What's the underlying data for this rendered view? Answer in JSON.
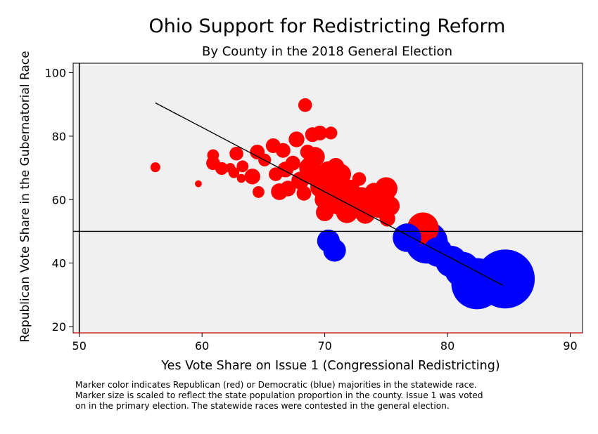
{
  "chart_data": {
    "type": "scatter",
    "title": "Ohio Support for Redistricting Reform",
    "subtitle": "By County in the 2018 General Election",
    "xlabel": "Yes Vote Share on Issue 1 (Congressional Redistricting)",
    "ylabel": "Republican Vote Share in the Gubernatorial Race",
    "xlim": [
      49.5,
      91
    ],
    "ylim": [
      18,
      103
    ],
    "xticks": [
      50,
      60,
      70,
      80,
      90
    ],
    "yticks": [
      20,
      40,
      60,
      80,
      100
    ],
    "grid": false,
    "reference_lines": {
      "x": 50,
      "y": 50
    },
    "fit_line": {
      "x": [
        56.2,
        84.5
      ],
      "y": [
        90.5,
        33
      ]
    },
    "colors": {
      "republican": "#ff0000",
      "democratic": "#0000ff",
      "line": "#000000",
      "plot_bg": "#f0f0f0"
    },
    "series": [
      {
        "name": "Republican",
        "color": "#ff0000",
        "points": [
          {
            "x": 56.2,
            "y": 70.2,
            "size": 1.0
          },
          {
            "x": 59.7,
            "y": 65.0,
            "size": 0.7
          },
          {
            "x": 60.9,
            "y": 74.0,
            "size": 1.2
          },
          {
            "x": 60.9,
            "y": 71.5,
            "size": 1.4
          },
          {
            "x": 61.6,
            "y": 69.8,
            "size": 1.3
          },
          {
            "x": 62.3,
            "y": 70.0,
            "size": 1.0
          },
          {
            "x": 62.8,
            "y": 74.5,
            "size": 1.4
          },
          {
            "x": 62.6,
            "y": 68.5,
            "size": 1.1
          },
          {
            "x": 63.2,
            "y": 66.7,
            "size": 0.9
          },
          {
            "x": 63.3,
            "y": 70.5,
            "size": 1.2
          },
          {
            "x": 64.1,
            "y": 67.3,
            "size": 1.6
          },
          {
            "x": 64.5,
            "y": 75.0,
            "size": 1.5
          },
          {
            "x": 64.6,
            "y": 62.4,
            "size": 1.2
          },
          {
            "x": 65.1,
            "y": 72.5,
            "size": 1.3
          },
          {
            "x": 65.8,
            "y": 77.0,
            "size": 1.5
          },
          {
            "x": 66.0,
            "y": 68.0,
            "size": 1.4
          },
          {
            "x": 66.3,
            "y": 62.5,
            "size": 1.7
          },
          {
            "x": 66.6,
            "y": 75.5,
            "size": 1.5
          },
          {
            "x": 66.8,
            "y": 69.5,
            "size": 1.6
          },
          {
            "x": 67.0,
            "y": 63.5,
            "size": 1.6
          },
          {
            "x": 67.4,
            "y": 71.5,
            "size": 1.5
          },
          {
            "x": 67.7,
            "y": 79.0,
            "size": 1.6
          },
          {
            "x": 68.0,
            "y": 66.0,
            "size": 1.8
          },
          {
            "x": 68.3,
            "y": 62.0,
            "size": 1.5
          },
          {
            "x": 68.4,
            "y": 89.8,
            "size": 1.4
          },
          {
            "x": 68.6,
            "y": 75.0,
            "size": 1.5
          },
          {
            "x": 68.8,
            "y": 70.0,
            "size": 2.2
          },
          {
            "x": 69.0,
            "y": 80.5,
            "size": 1.5
          },
          {
            "x": 69.2,
            "y": 73.5,
            "size": 2.0
          },
          {
            "x": 69.4,
            "y": 67.0,
            "size": 2.0
          },
          {
            "x": 69.6,
            "y": 81.0,
            "size": 1.5
          },
          {
            "x": 69.7,
            "y": 64.0,
            "size": 2.2
          },
          {
            "x": 69.9,
            "y": 60.0,
            "size": 1.8
          },
          {
            "x": 70.0,
            "y": 56.0,
            "size": 1.8
          },
          {
            "x": 70.3,
            "y": 69.0,
            "size": 2.0
          },
          {
            "x": 70.5,
            "y": 81.0,
            "size": 1.3
          },
          {
            "x": 70.6,
            "y": 64.5,
            "size": 2.1
          },
          {
            "x": 70.9,
            "y": 70.5,
            "size": 1.7
          },
          {
            "x": 71.1,
            "y": 59.0,
            "size": 2.4
          },
          {
            "x": 71.3,
            "y": 68.0,
            "size": 2.1
          },
          {
            "x": 71.5,
            "y": 62.0,
            "size": 2.0
          },
          {
            "x": 71.8,
            "y": 56.0,
            "size": 2.2
          },
          {
            "x": 72.1,
            "y": 63.5,
            "size": 1.8
          },
          {
            "x": 72.4,
            "y": 58.5,
            "size": 2.1
          },
          {
            "x": 72.8,
            "y": 66.5,
            "size": 1.4
          },
          {
            "x": 73.0,
            "y": 61.0,
            "size": 1.9
          },
          {
            "x": 73.3,
            "y": 55.5,
            "size": 2.0
          },
          {
            "x": 73.7,
            "y": 59.0,
            "size": 2.2
          },
          {
            "x": 74.0,
            "y": 62.5,
            "size": 1.8
          },
          {
            "x": 74.4,
            "y": 57.5,
            "size": 2.1
          },
          {
            "x": 74.7,
            "y": 61.0,
            "size": 2.0
          },
          {
            "x": 75.0,
            "y": 63.5,
            "size": 2.3
          },
          {
            "x": 75.3,
            "y": 58.0,
            "size": 2.0
          },
          {
            "x": 75.1,
            "y": 54.0,
            "size": 1.6
          },
          {
            "x": 78.0,
            "y": 51.0,
            "size": 3.2
          }
        ]
      },
      {
        "name": "Democratic",
        "color": "#0000ff",
        "points": [
          {
            "x": 70.3,
            "y": 47.0,
            "size": 2.3
          },
          {
            "x": 70.8,
            "y": 44.0,
            "size": 2.3
          },
          {
            "x": 76.7,
            "y": 48.0,
            "size": 2.9
          },
          {
            "x": 78.3,
            "y": 46.5,
            "size": 4.3
          },
          {
            "x": 79.2,
            "y": 43.5,
            "size": 3.0
          },
          {
            "x": 80.3,
            "y": 40.5,
            "size": 3.2
          },
          {
            "x": 81.2,
            "y": 38.0,
            "size": 3.6
          },
          {
            "x": 82.4,
            "y": 33.5,
            "size": 5.2
          },
          {
            "x": 84.7,
            "y": 35.0,
            "size": 6.0
          }
        ]
      }
    ]
  },
  "note_lines": [
    "Marker color indicates Republican (red) or Democratic (blue) majorities in the statewide race.",
    "Marker size is scaled to reflect the state population proportion in the county. Issue 1 was voted",
    "on in the primary election. The statewide races were contested in the general election."
  ]
}
